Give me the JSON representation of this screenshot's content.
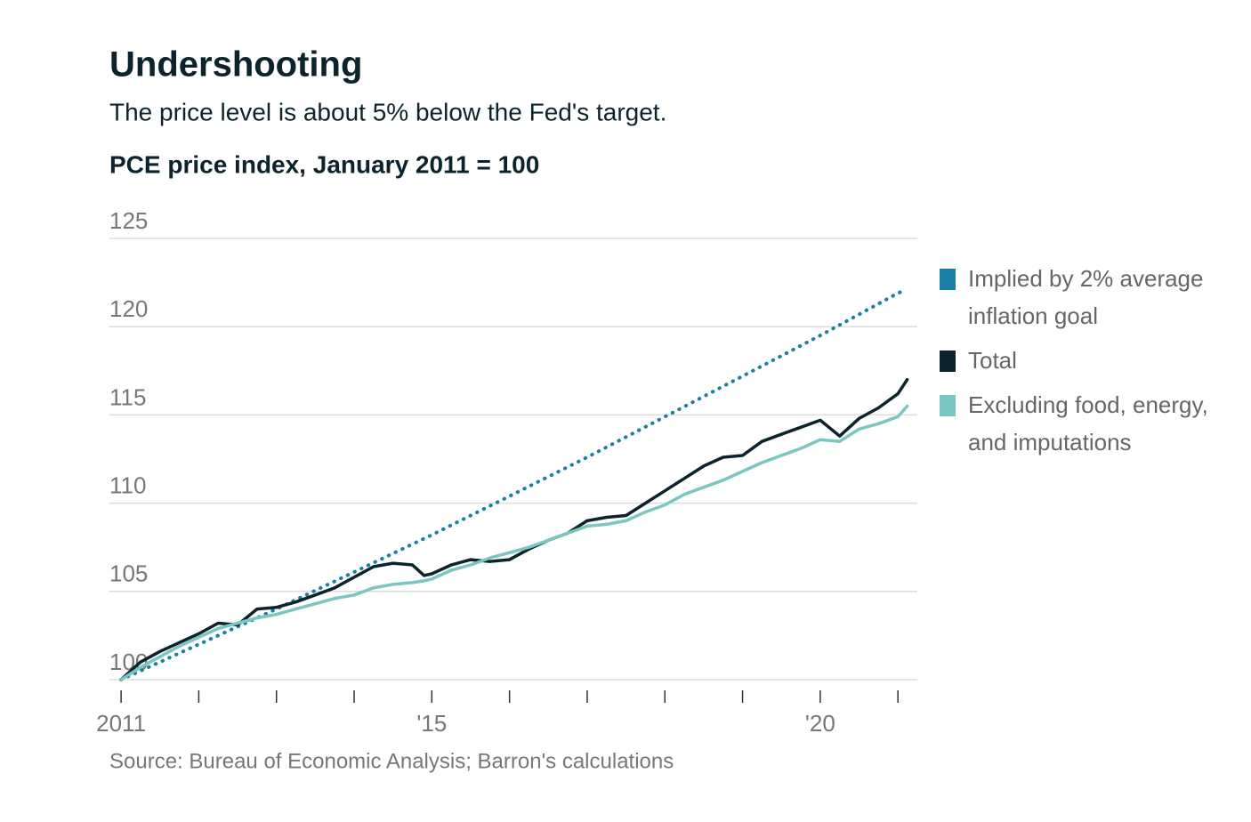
{
  "chart_data": {
    "type": "line",
    "title": "Undershooting",
    "subtitle": "The price level is about 5% below the Fed's target.",
    "y_label": "PCE price index, January 2011 = 100",
    "source": "Source: Bureau of Economic Analysis; Barron's calculations",
    "x": [
      2011,
      2011.25,
      2011.5,
      2011.75,
      2012,
      2012.25,
      2012.5,
      2012.75,
      2013,
      2013.25,
      2013.5,
      2013.75,
      2014,
      2014.25,
      2014.5,
      2014.75,
      2014.9,
      2015,
      2015.25,
      2015.5,
      2015.75,
      2016,
      2016.25,
      2016.5,
      2016.75,
      2017,
      2017.25,
      2017.5,
      2017.75,
      2018,
      2018.25,
      2018.5,
      2018.75,
      2019,
      2019.25,
      2019.5,
      2019.75,
      2020,
      2020.25,
      2020.5,
      2020.75,
      2021,
      2021.12
    ],
    "series": [
      {
        "name": "Implied by 2% average inflation goal",
        "color": "#1a7fa3",
        "dotted": true,
        "x": [
          2011,
          2012,
          2013,
          2014,
          2015,
          2016,
          2017,
          2018,
          2019,
          2020,
          2021,
          2021.06
        ],
        "values": [
          100,
          102,
          104.0,
          106.1,
          108.2,
          110.4,
          112.6,
          114.9,
          117.2,
          119.5,
          121.9,
          122.0
        ]
      },
      {
        "name": "Total",
        "color": "#0c232b",
        "values": [
          100,
          101.0,
          101.6,
          102.1,
          102.6,
          103.2,
          103.1,
          104.0,
          104.1,
          104.4,
          104.8,
          105.2,
          105.8,
          106.4,
          106.6,
          106.5,
          105.9,
          106.0,
          106.5,
          106.8,
          106.7,
          106.8,
          107.4,
          107.9,
          108.3,
          109.0,
          109.2,
          109.3,
          110.0,
          110.7,
          111.4,
          112.1,
          112.6,
          112.7,
          113.5,
          113.9,
          114.3,
          114.7,
          113.8,
          114.8,
          115.4,
          116.2,
          117.0
        ]
      },
      {
        "name": "Excluding food, energy, and imputations",
        "color": "#7cc6c2",
        "values": [
          100,
          100.7,
          101.3,
          101.9,
          102.4,
          102.9,
          103.2,
          103.5,
          103.7,
          104.0,
          104.3,
          104.6,
          104.8,
          105.2,
          105.4,
          105.5,
          105.6,
          105.7,
          106.2,
          106.5,
          106.9,
          107.2,
          107.5,
          107.9,
          108.3,
          108.7,
          108.8,
          109.0,
          109.5,
          109.9,
          110.5,
          110.9,
          111.3,
          111.8,
          112.3,
          112.7,
          113.1,
          113.6,
          113.5,
          114.2,
          114.5,
          114.9,
          115.5
        ]
      }
    ],
    "ylim": [
      100,
      125
    ],
    "yticks": [
      100,
      105,
      110,
      115,
      120,
      125
    ],
    "xlim": [
      2010.85,
      2021.25
    ],
    "xticks": [
      2011,
      {
        "value": 2012,
        "label": null
      },
      {
        "value": 2013,
        "label": null
      },
      {
        "value": 2014,
        "label": null
      },
      {
        "value": 2015,
        "label": "'15"
      },
      {
        "value": 2016,
        "label": null
      },
      {
        "value": 2017,
        "label": null
      },
      {
        "value": 2018,
        "label": null
      },
      {
        "value": 2019,
        "label": null
      },
      {
        "value": 2020,
        "label": "'20"
      },
      {
        "value": 2021,
        "label": null
      }
    ],
    "grid": true
  }
}
